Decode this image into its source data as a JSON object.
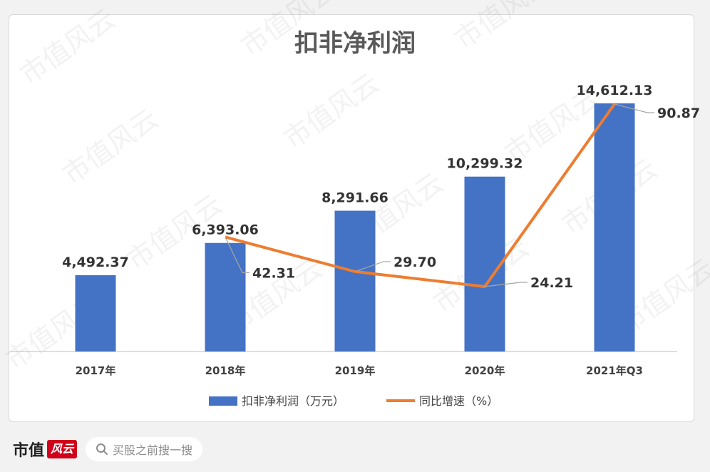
{
  "chart_data": {
    "type": "bar+line",
    "title": "扣非净利润",
    "categories": [
      "2017年",
      "2018年",
      "2019年",
      "2020年",
      "2021年Q3"
    ],
    "series": [
      {
        "name": "扣非净利润（万元）",
        "type": "bar",
        "values": [
          4492.37,
          6393.06,
          8291.66,
          10299.32,
          14612.13
        ],
        "labels": [
          "4,492.37",
          "6,393.06",
          "8,291.66",
          "10,299.32",
          "14,612.13"
        ],
        "color": "#4472c4"
      },
      {
        "name": "同比增速（%）",
        "type": "line",
        "values": [
          null,
          42.31,
          29.7,
          24.21,
          90.87
        ],
        "labels": [
          "",
          "42.31",
          "29.70",
          "24.21",
          "90.87"
        ],
        "color": "#ed7d31"
      }
    ],
    "grid": false,
    "legend": "bottom"
  },
  "watermark": "市值风云",
  "footer": {
    "brand": "市值",
    "brand_seal": "风云",
    "search_placeholder": "买股之前搜一搜"
  }
}
